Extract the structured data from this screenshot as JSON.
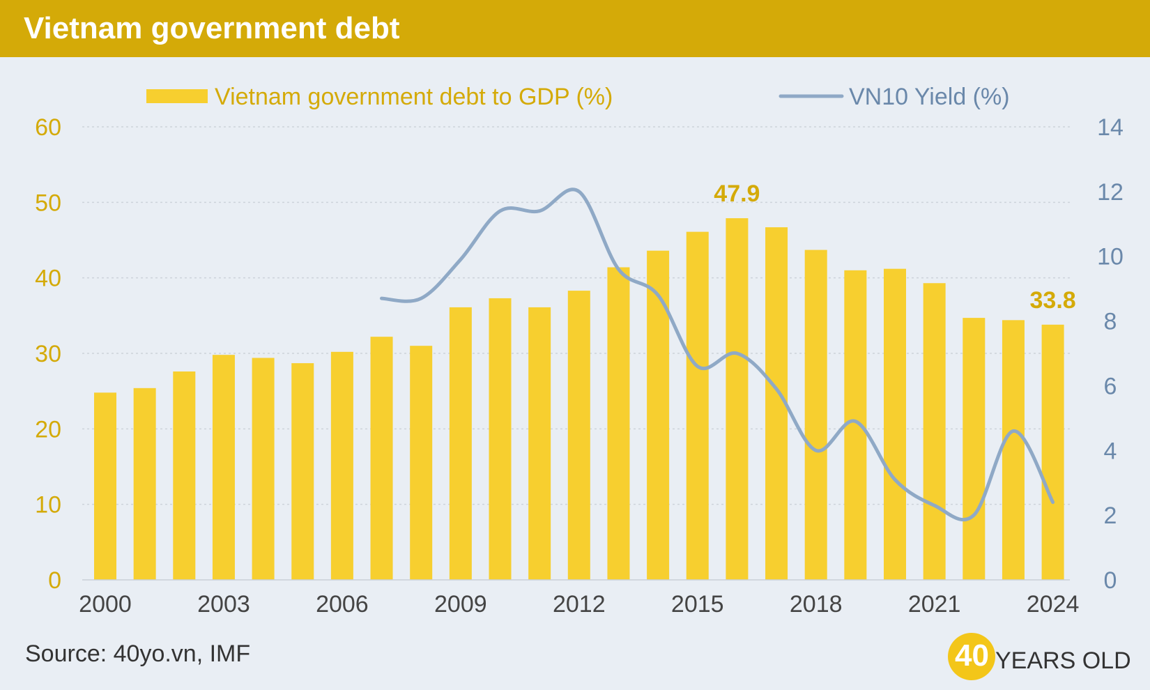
{
  "header": {
    "title": "Vietnam government debt"
  },
  "footer": {
    "source": "Source: 40yo.vn, IMF"
  },
  "brand": {
    "number": "40",
    "word": "YEARS OLD"
  },
  "colors": {
    "header_bg": "#d4aa08",
    "bar": "#f7cf2f",
    "line": "#8fa9c6",
    "left_axis_text": "#d4aa08",
    "right_axis_text": "#6a88aa",
    "background": "#e9eef4"
  },
  "chart_data": {
    "type": "bar+line",
    "legend_position": "top",
    "grid": true,
    "x_tick_labels": [
      "2000",
      "2003",
      "2006",
      "2009",
      "2012",
      "2015",
      "2018",
      "2021",
      "2024"
    ],
    "years": [
      2000,
      2001,
      2002,
      2003,
      2004,
      2005,
      2006,
      2007,
      2008,
      2009,
      2010,
      2011,
      2012,
      2013,
      2014,
      2015,
      2016,
      2017,
      2018,
      2019,
      2020,
      2021,
      2022,
      2023,
      2024
    ],
    "series": [
      {
        "name": "Vietnam government debt to GDP (%)",
        "type": "bar",
        "axis": "left",
        "values": [
          24.8,
          25.4,
          27.6,
          29.8,
          29.4,
          28.7,
          30.2,
          32.2,
          31.0,
          36.1,
          37.3,
          36.1,
          38.3,
          41.4,
          43.6,
          46.1,
          47.9,
          46.7,
          43.7,
          41.0,
          41.2,
          39.3,
          34.7,
          34.4,
          33.8
        ]
      },
      {
        "name": "VN10 Yield (%)",
        "type": "line",
        "axis": "right",
        "x": [
          2007,
          2008,
          2009,
          2010,
          2011,
          2012,
          2013,
          2014,
          2015,
          2016,
          2017,
          2018,
          2019,
          2020,
          2021,
          2022,
          2023,
          2024
        ],
        "values": [
          8.7,
          8.7,
          9.9,
          11.4,
          11.4,
          12.0,
          9.6,
          8.8,
          6.6,
          7.0,
          5.9,
          4.0,
          4.9,
          3.1,
          2.3,
          2.0,
          4.6,
          2.4
        ]
      }
    ],
    "y_left": {
      "min": 0,
      "max": 60,
      "ticks": [
        0,
        10,
        20,
        30,
        40,
        50,
        60
      ]
    },
    "y_right": {
      "min": 0,
      "max": 14,
      "ticks": [
        0,
        2,
        4,
        6,
        8,
        10,
        12,
        14
      ]
    },
    "annotations": [
      {
        "year": 2016,
        "text": "47.9"
      },
      {
        "year": 2024,
        "text": "33.8"
      }
    ]
  }
}
